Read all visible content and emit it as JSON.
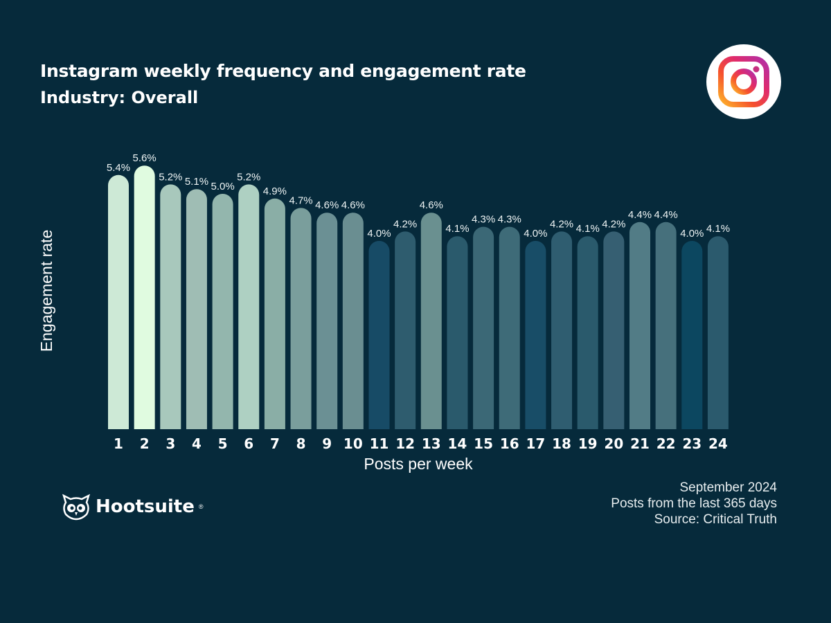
{
  "chart_data": {
    "type": "bar",
    "title": "Instagram weekly frequency  and engagement rate",
    "subtitle": "Industry: Overall",
    "xlabel": "Posts per week",
    "ylabel": "Engagement rate",
    "categories": [
      "1",
      "2",
      "3",
      "4",
      "5",
      "6",
      "7",
      "8",
      "9",
      "10",
      "11",
      "12",
      "13",
      "14",
      "15",
      "16",
      "17",
      "18",
      "19",
      "20",
      "21",
      "22",
      "23",
      "24"
    ],
    "values": [
      5.4,
      5.6,
      5.2,
      5.1,
      5.0,
      5.2,
      4.9,
      4.7,
      4.6,
      4.6,
      4.0,
      4.2,
      4.6,
      4.1,
      4.3,
      4.3,
      4.0,
      4.2,
      4.1,
      4.2,
      4.4,
      4.4,
      4.0,
      4.1
    ],
    "value_labels": [
      "5.4%",
      "5.6%",
      "5.2%",
      "5.1%",
      "5.0%",
      "5.2%",
      "4.9%",
      "4.7%",
      "4.6%",
      "4.6%",
      "4.0%",
      "4.2%",
      "4.6%",
      "4.1%",
      "4.3%",
      "4.3%",
      "4.0%",
      "4.2%",
      "4.1%",
      "4.2%",
      "4.4%",
      "4.4%",
      "4.0%",
      "4.1%"
    ],
    "bar_colors": [
      "#cde9d6",
      "#e0fbe0",
      "#a8c8bc",
      "#9fbdb4",
      "#93b6ad",
      "#aed0c2",
      "#8aaea6",
      "#7a9e9c",
      "#6b9094",
      "#6a8e91",
      "#174b66",
      "#2e5c6e",
      "#6a9090",
      "#2a5a6c",
      "#3b6876",
      "#3e6b78",
      "#184d67",
      "#2f5d70",
      "#2a5a6c",
      "#365f72",
      "#527c86",
      "#46707c",
      "#0c4760",
      "#2b5a6d"
    ],
    "ylim": [
      0,
      6
    ],
    "grid": false,
    "legend": "none"
  },
  "footer": {
    "lines": [
      "September 2024",
      "Posts from the last 365 days",
      "Source: Critical Truth"
    ]
  },
  "brand": {
    "name": "Hootsuite",
    "background": "#062a3b"
  },
  "icons": {
    "platform": "instagram-icon",
    "brand": "hootsuite-owl-icon"
  }
}
